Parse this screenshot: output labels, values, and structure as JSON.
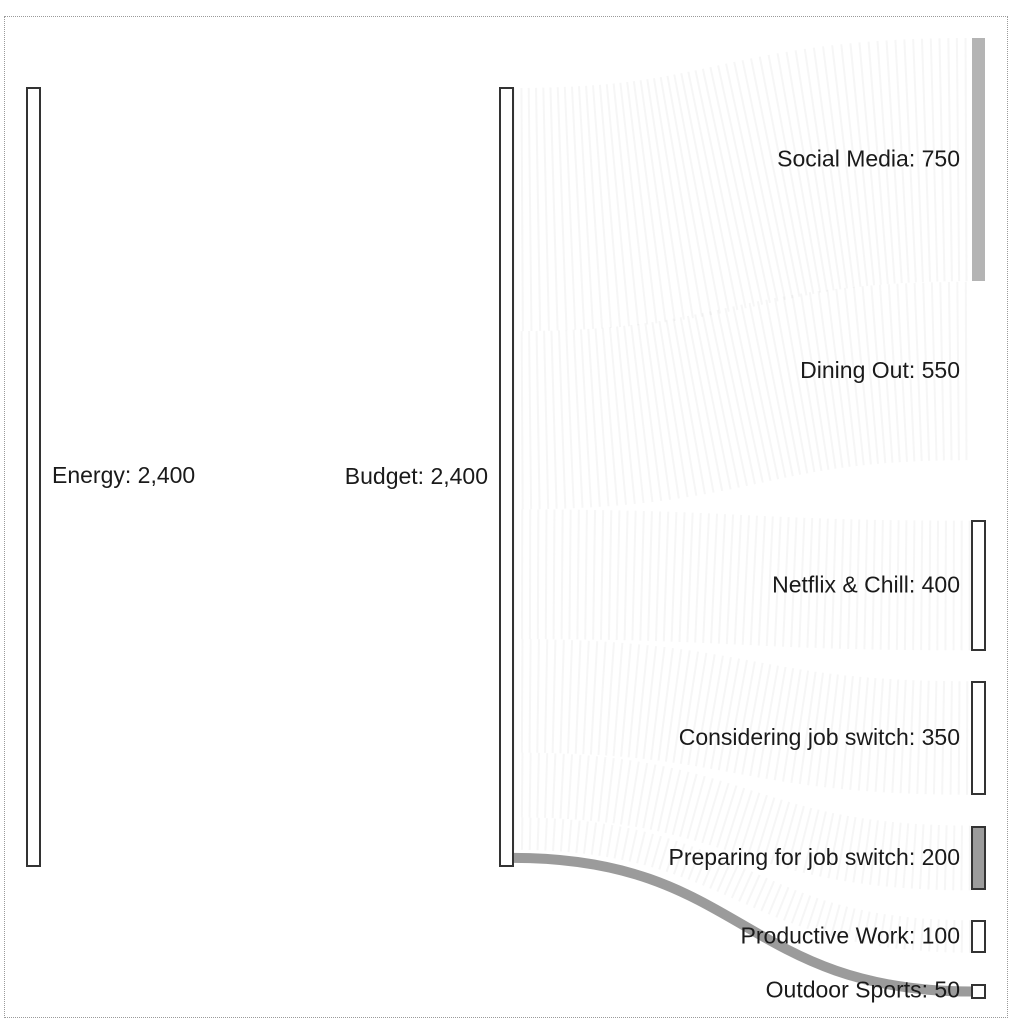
{
  "chart_data": {
    "type": "sankey",
    "nodes": [
      {
        "id": "energy",
        "name": "Energy",
        "value": 2400,
        "value_label": "2,400",
        "column": 0
      },
      {
        "id": "budget",
        "name": "Budget",
        "value": 2400,
        "value_label": "2,400",
        "column": 1
      },
      {
        "id": "social_media",
        "name": "Social Media",
        "value": 750,
        "value_label": "750",
        "column": 2
      },
      {
        "id": "dining_out",
        "name": "Dining Out",
        "value": 550,
        "value_label": "550",
        "column": 2
      },
      {
        "id": "netflix",
        "name": "Netflix & Chill",
        "value": 400,
        "value_label": "400",
        "column": 2
      },
      {
        "id": "considering",
        "name": "Considering job switch",
        "value": 350,
        "value_label": "350",
        "column": 2
      },
      {
        "id": "preparing",
        "name": "Preparing for job switch",
        "value": 200,
        "value_label": "200",
        "column": 2
      },
      {
        "id": "productive",
        "name": "Productive Work",
        "value": 100,
        "value_label": "100",
        "column": 2
      },
      {
        "id": "outdoor",
        "name": "Outdoor Sports",
        "value": 50,
        "value_label": "50",
        "column": 2
      }
    ],
    "links": [
      {
        "source": "budget",
        "target": "social_media",
        "value": 750
      },
      {
        "source": "budget",
        "target": "dining_out",
        "value": 550
      },
      {
        "source": "budget",
        "target": "netflix",
        "value": 400
      },
      {
        "source": "budget",
        "target": "considering",
        "value": 350
      },
      {
        "source": "budget",
        "target": "preparing",
        "value": 200
      },
      {
        "source": "budget",
        "target": "productive",
        "value": 100
      },
      {
        "source": "budget",
        "target": "outdoor",
        "value": 50
      }
    ],
    "colors": {
      "node_stroke": "#333333",
      "node_fill": "#ffffff",
      "social_media": "#b4b4b4",
      "preparing": "#9c9c9c",
      "link": "#8a8a8a",
      "frame": "#9a9a9a"
    }
  }
}
